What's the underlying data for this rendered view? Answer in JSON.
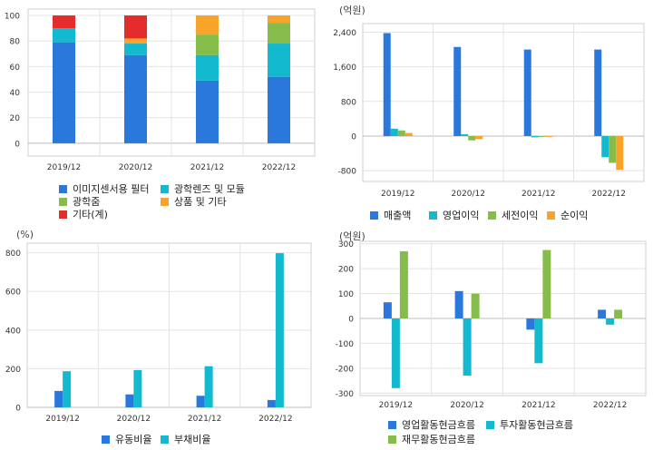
{
  "colors": {
    "blue": "#2a78dc",
    "cyan": "#13b9cf",
    "green": "#86bc4a",
    "orange": "#f8a32a",
    "red": "#e42d2b",
    "grid": "#e3e3e3",
    "frame": "#cfcfcf"
  },
  "chart_data": [
    {
      "id": "product-mix",
      "type": "bar",
      "stacked": true,
      "unit": "",
      "categories": [
        "2019/12",
        "2020/12",
        "2021/12",
        "2022/12"
      ],
      "ylim": [
        -10,
        105
      ],
      "yticks": [
        0,
        20,
        40,
        60,
        80,
        100
      ],
      "grid": true,
      "legend_position": "bottom",
      "series": [
        {
          "name": "이미지센서용 필터",
          "color": "#2a78dc",
          "values": [
            79,
            69,
            49,
            52
          ]
        },
        {
          "name": "광학렌즈 및 모듈",
          "color": "#13b9cf",
          "values": [
            11,
            9,
            20,
            26
          ]
        },
        {
          "name": "광학줌",
          "color": "#86bc4a",
          "values": [
            0,
            0,
            16,
            16
          ]
        },
        {
          "name": "상품 및 기타",
          "color": "#f8a32a",
          "values": [
            0,
            4,
            15,
            6
          ]
        },
        {
          "name": "기타(계)",
          "color": "#e42d2b",
          "values": [
            10,
            18,
            0,
            0
          ]
        }
      ]
    },
    {
      "id": "income",
      "type": "bar",
      "stacked": false,
      "unit": "(억원)",
      "categories": [
        "2019/12",
        "2020/12",
        "2021/12",
        "2022/12"
      ],
      "ylim": [
        -1050,
        2600
      ],
      "yticks": [
        -800,
        0,
        800,
        1600,
        2400
      ],
      "ytick_labels": [
        "-800",
        "0",
        "800",
        "1,600",
        "2,400"
      ],
      "grid": true,
      "legend_position": "bottom",
      "series": [
        {
          "name": "매출액",
          "color": "#2a78dc",
          "values": [
            2380,
            2060,
            2000,
            2000
          ]
        },
        {
          "name": "영업이익",
          "color": "#13b9cf",
          "values": [
            170,
            40,
            -30,
            -490
          ]
        },
        {
          "name": "세전이익",
          "color": "#86bc4a",
          "values": [
            130,
            -100,
            -20,
            -620
          ]
        },
        {
          "name": "순이익",
          "color": "#f8a32a",
          "values": [
            70,
            -70,
            -20,
            -780
          ]
        }
      ]
    },
    {
      "id": "ratios",
      "type": "bar",
      "stacked": false,
      "unit": "(%)",
      "categories": [
        "2019/12",
        "2020/12",
        "2021/12",
        "2022/12"
      ],
      "ylim": [
        0,
        850
      ],
      "yticks": [
        0,
        200,
        400,
        600,
        800
      ],
      "grid": true,
      "legend_position": "bottom",
      "series": [
        {
          "name": "유동비율",
          "color": "#2a78dc",
          "values": [
            85,
            67,
            60,
            38
          ]
        },
        {
          "name": "부채비율",
          "color": "#13b9cf",
          "values": [
            187,
            193,
            213,
            798
          ]
        }
      ]
    },
    {
      "id": "cashflow",
      "type": "bar",
      "stacked": false,
      "unit": "(억원)",
      "categories": [
        "2019/12",
        "2020/12",
        "2021/12",
        "2022/12"
      ],
      "ylim": [
        -310,
        310
      ],
      "yticks": [
        -300,
        -200,
        -100,
        0,
        100,
        200,
        300
      ],
      "grid": true,
      "legend_position": "bottom",
      "series": [
        {
          "name": "영업활동현금흐름",
          "color": "#2a78dc",
          "values": [
            65,
            110,
            -45,
            35
          ]
        },
        {
          "name": "투자활동현금흐름",
          "color": "#13b9cf",
          "values": [
            -280,
            -230,
            -180,
            -25
          ]
        },
        {
          "name": "재무활동현금흐름",
          "color": "#86bc4a",
          "values": [
            270,
            100,
            275,
            35
          ]
        }
      ]
    }
  ]
}
